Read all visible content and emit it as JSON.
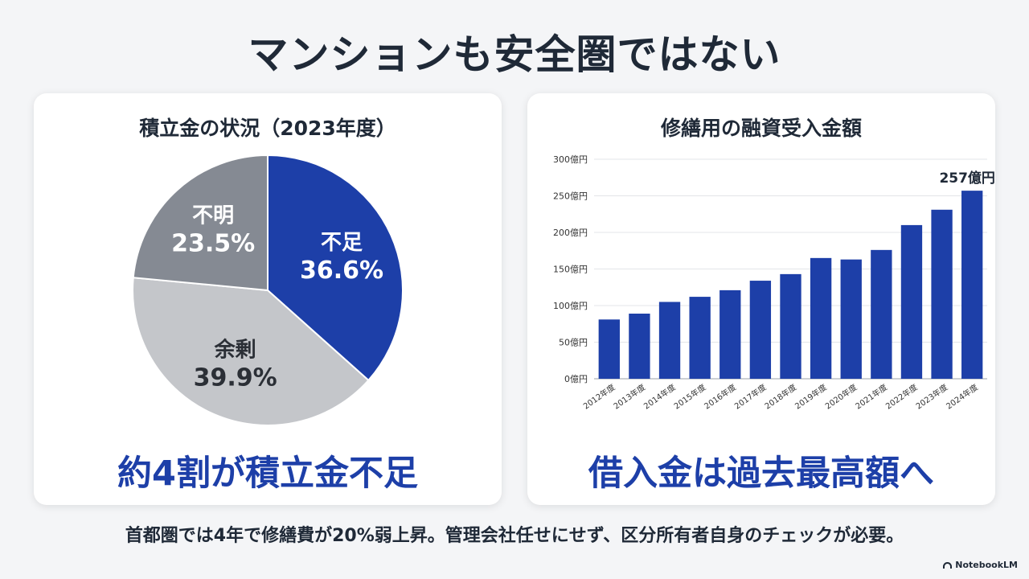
{
  "page": {
    "title": "マンションも安全圏ではない",
    "footer": "首都圏では4年で修繕費が20%弱上昇。管理会社任せにせず、区分所有者自身のチェックが必要。",
    "brand": "NotebookLM"
  },
  "left_card": {
    "headline": "約4割が積立金不足"
  },
  "right_card": {
    "headline": "借入金は過去最高額へ"
  },
  "colors": {
    "blue": "#1d3fa8",
    "dark_gray": "#858a93",
    "light_gray": "#c4c6ca"
  },
  "chart_data": [
    {
      "type": "pie",
      "title": "積立金の状況（2023年度）",
      "slices": [
        {
          "label": "不足",
          "value": 36.6,
          "display": "36.6%",
          "color": "#1d3fa8",
          "text_color": "#ffffff"
        },
        {
          "label": "余剰",
          "value": 39.9,
          "display": "39.9%",
          "color": "#c4c6ca",
          "text_color": "#2b2f36"
        },
        {
          "label": "不明",
          "value": 23.5,
          "display": "23.5%",
          "color": "#858a93",
          "text_color": "#ffffff"
        }
      ]
    },
    {
      "type": "bar",
      "title": "修繕用の融資受入金額",
      "categories": [
        "2012年度",
        "2013年度",
        "2014年度",
        "2015年度",
        "2016年度",
        "2017年度",
        "2018年度",
        "2019年度",
        "2020年度",
        "2021年度",
        "2022年度",
        "2023年度",
        "2024年度"
      ],
      "values": [
        81,
        89,
        105,
        112,
        121,
        134,
        143,
        165,
        163,
        176,
        210,
        231,
        257
      ],
      "ylim": [
        0,
        300
      ],
      "yticks": [
        0,
        50,
        100,
        150,
        200,
        250,
        300
      ],
      "ytick_labels": [
        "0億円",
        "50億円",
        "100億円",
        "150億円",
        "200億円",
        "250億円",
        "300億円"
      ],
      "annotation": {
        "category": "2024年度",
        "text": "257億円"
      },
      "grid": true,
      "bar_color": "#1d3fa8"
    }
  ]
}
